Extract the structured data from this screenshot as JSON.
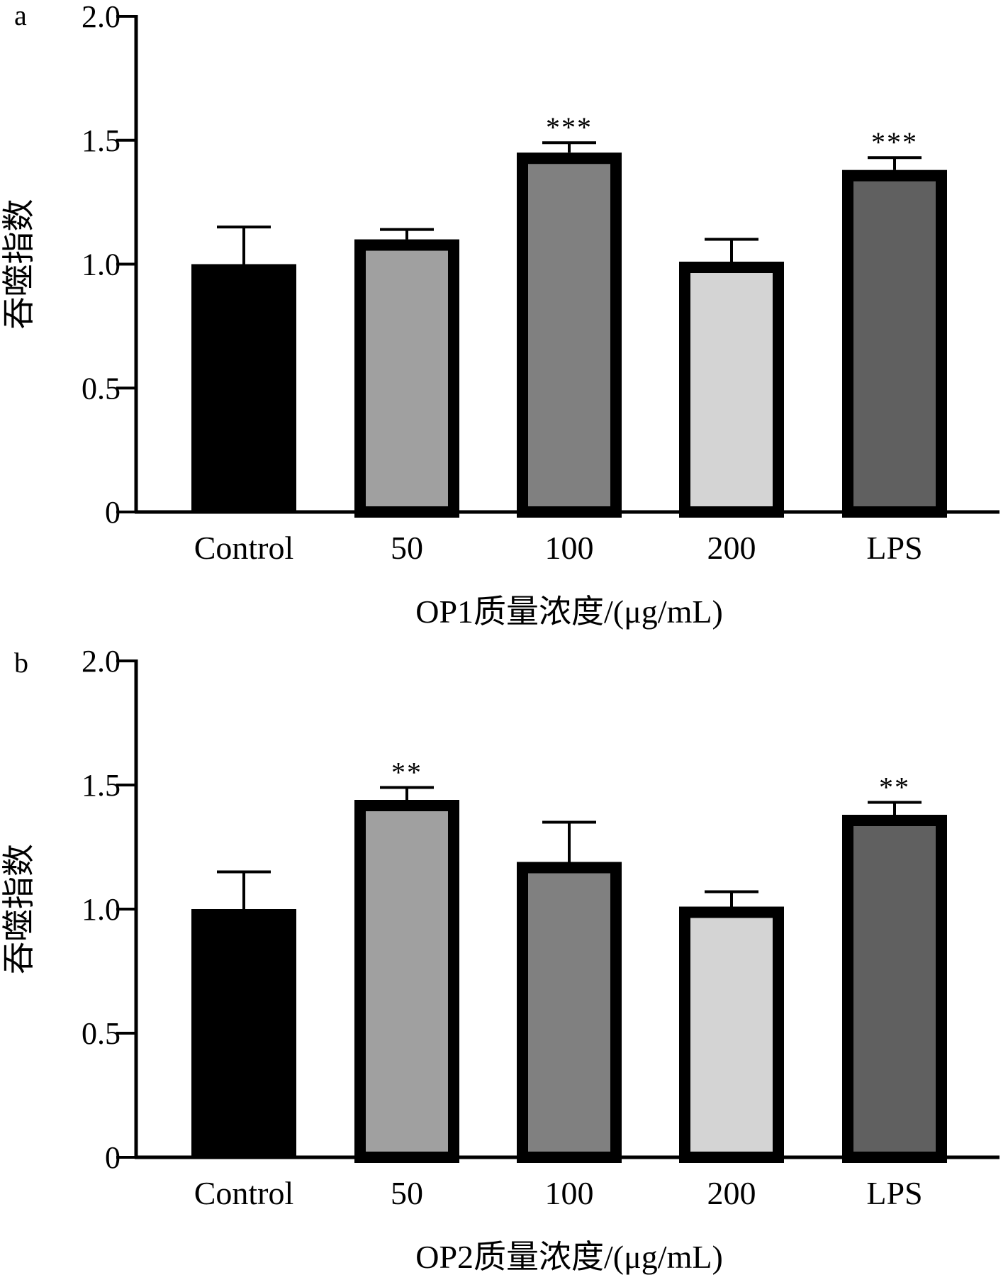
{
  "chart_data": [
    {
      "type": "bar",
      "panel_label": "a",
      "categories": [
        "Control",
        "50",
        "100",
        "200",
        "LPS"
      ],
      "values": [
        1.0,
        1.1,
        1.45,
        1.01,
        1.38
      ],
      "errors": [
        0.15,
        0.04,
        0.04,
        0.09,
        0.05
      ],
      "significance": [
        "",
        "",
        "***",
        "",
        "***"
      ],
      "bar_colors": [
        "#000000",
        "#a0a0a0",
        "#808080",
        "#d4d4d4",
        "#606060"
      ],
      "xlabel": "OP1质量浓度/(μg/mL)",
      "ylabel": "吞噬指数",
      "ylim": [
        0,
        2.0
      ],
      "yticks": [
        0,
        0.5,
        1.0,
        1.5,
        2.0
      ],
      "ytick_labels": [
        "0",
        "0.5",
        "1.0",
        "1.5",
        "2.0"
      ],
      "grid": false,
      "legend": false
    },
    {
      "type": "bar",
      "panel_label": "b",
      "categories": [
        "Control",
        "50",
        "100",
        "200",
        "LPS"
      ],
      "values": [
        1.0,
        1.44,
        1.19,
        1.01,
        1.38
      ],
      "errors": [
        0.15,
        0.05,
        0.16,
        0.06,
        0.05
      ],
      "significance": [
        "",
        "**",
        "",
        "",
        "**"
      ],
      "bar_colors": [
        "#000000",
        "#a0a0a0",
        "#808080",
        "#d4d4d4",
        "#606060"
      ],
      "xlabel": "OP2质量浓度/(μg/mL)",
      "ylabel": "吞噬指数",
      "ylim": [
        0,
        2.0
      ],
      "yticks": [
        0,
        0.5,
        1.0,
        1.5,
        2.0
      ],
      "ytick_labels": [
        "0",
        "0.5",
        "1.0",
        "1.5",
        "2.0"
      ],
      "grid": false,
      "legend": false
    }
  ]
}
